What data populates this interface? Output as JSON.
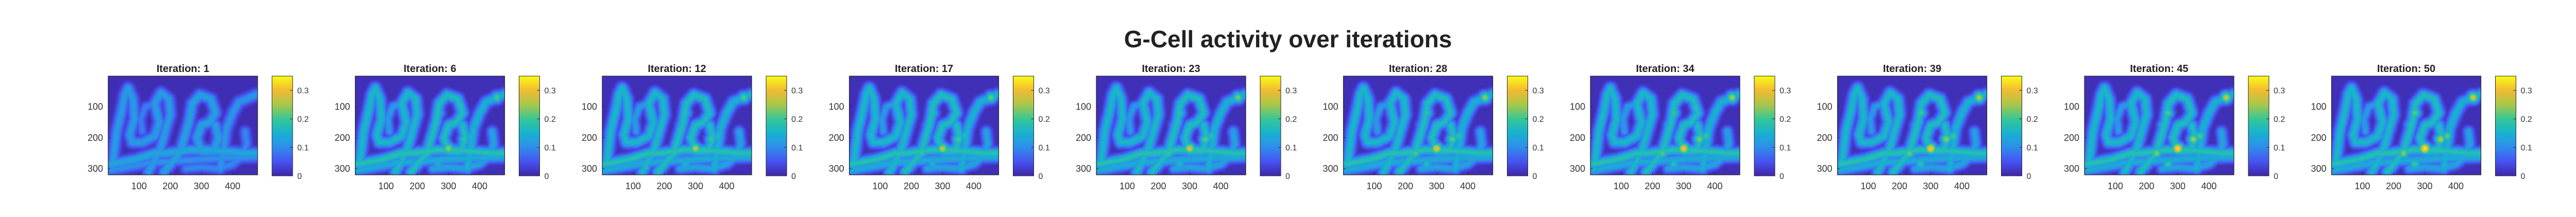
{
  "figure": {
    "title": "G-Cell activity over iterations"
  },
  "chart_data": {
    "type": "heatmap",
    "title": "G-Cell activity over iterations",
    "colormap": "parula",
    "colormap_stops": [
      "#3e26a8",
      "#4653f1",
      "#2f8dec",
      "#17b2d0",
      "#37c795",
      "#a8c74a",
      "#f2ba32",
      "#f9fb15"
    ],
    "frame_color": "#262626",
    "x_ticks": [
      100,
      200,
      300,
      400
    ],
    "x_tick_labels": [
      "100",
      "200",
      "300",
      "400"
    ],
    "y_ticks": [
      100,
      200,
      300
    ],
    "y_tick_labels": [
      "100",
      "200",
      "300"
    ],
    "xlim": [
      1,
      480
    ],
    "ylim": [
      1,
      320
    ],
    "y_direction": "reverse",
    "clim": [
      0,
      0.35
    ],
    "colorbar_ticks": [
      0,
      0.1,
      0.2,
      0.3
    ],
    "colorbar_tick_labels": [
      "0",
      "0.1",
      "0.2",
      "0.3"
    ],
    "panels": [
      {
        "iteration": 1,
        "label": "Iteration: 1"
      },
      {
        "iteration": 6,
        "label": "Iteration: 6"
      },
      {
        "iteration": 12,
        "label": "Iteration: 12"
      },
      {
        "iteration": 17,
        "label": "Iteration: 17"
      },
      {
        "iteration": 23,
        "label": "Iteration: 23"
      },
      {
        "iteration": 28,
        "label": "Iteration: 28"
      },
      {
        "iteration": 34,
        "label": "Iteration: 34"
      },
      {
        "iteration": 39,
        "label": "Iteration: 39"
      },
      {
        "iteration": 45,
        "label": "Iteration: 45"
      },
      {
        "iteration": 50,
        "label": "Iteration: 50"
      }
    ],
    "field": {
      "background": 0.01,
      "tracks": [
        {
          "points": [
            [
              10,
              285
            ],
            [
              90,
              270
            ],
            [
              150,
              250
            ],
            [
              190,
              250
            ],
            [
              260,
              240
            ],
            [
              330,
              240
            ],
            [
              440,
              250
            ],
            [
              478,
              250
            ]
          ],
          "width": 13,
          "intensity": 0.18
        },
        {
          "points": [
            [
              10,
              305
            ],
            [
              140,
              280
            ],
            [
              220,
              275
            ],
            [
              300,
              270
            ],
            [
              380,
              265
            ],
            [
              478,
              262
            ]
          ],
          "width": 13,
          "intensity": 0.14
        },
        {
          "points": [
            [
              15,
              285
            ],
            [
              28,
              180
            ],
            [
              45,
              110
            ],
            [
              55,
              60
            ],
            [
              65,
              40
            ],
            [
              80,
              75
            ],
            [
              85,
              140
            ],
            [
              70,
              190
            ],
            [
              78,
              215
            ],
            [
              110,
              215
            ],
            [
              150,
              195
            ],
            [
              165,
              150
            ],
            [
              150,
              90
            ],
            [
              170,
              55
            ],
            [
              195,
              75
            ],
            [
              200,
              125
            ],
            [
              185,
              175
            ],
            [
              170,
              230
            ],
            [
              150,
              275
            ],
            [
              130,
              310
            ]
          ],
          "width": 13,
          "intensity": 0.16
        },
        {
          "points": [
            [
              180,
              310
            ],
            [
              230,
              250
            ],
            [
              260,
              150
            ],
            [
              270,
              90
            ],
            [
              295,
              62
            ],
            [
              330,
              75
            ],
            [
              345,
              120
            ],
            [
              325,
              150
            ],
            [
              300,
              160
            ],
            [
              285,
              200
            ],
            [
              300,
              245
            ],
            [
              340,
              245
            ],
            [
              355,
              200
            ],
            [
              345,
              160
            ]
          ],
          "width": 13,
          "intensity": 0.17
        },
        {
          "points": [
            [
              360,
              300
            ],
            [
              372,
              230
            ],
            [
              380,
              170
            ],
            [
              400,
              120
            ],
            [
              420,
              85
            ],
            [
              455,
              70
            ],
            [
              478,
              60
            ]
          ],
          "width": 13,
          "intensity": 0.15
        },
        {
          "points": [
            [
              250,
              300
            ],
            [
              300,
              295
            ],
            [
              350,
              300
            ],
            [
              400,
              285
            ],
            [
              430,
              260
            ],
            [
              445,
              220
            ],
            [
              440,
              180
            ]
          ],
          "width": 12,
          "intensity": 0.13
        },
        {
          "points": [
            [
              150,
              90
            ],
            [
              120,
              100
            ],
            [
              105,
              140
            ],
            [
              110,
              180
            ]
          ],
          "width": 11,
          "intensity": 0.12
        }
      ],
      "hotspots": [
        {
          "x": 268,
          "y": 120,
          "intensity": 0.22
        },
        {
          "x": 300,
          "y": 235,
          "intensity": 0.34
        },
        {
          "x": 232,
          "y": 250,
          "intensity": 0.24
        },
        {
          "x": 350,
          "y": 205,
          "intensity": 0.26
        },
        {
          "x": 372,
          "y": 195,
          "intensity": 0.22
        },
        {
          "x": 268,
          "y": 285,
          "intensity": 0.2
        },
        {
          "x": 455,
          "y": 70,
          "intensity": 0.28
        },
        {
          "x": 255,
          "y": 160,
          "intensity": 0.18
        }
      ]
    }
  }
}
